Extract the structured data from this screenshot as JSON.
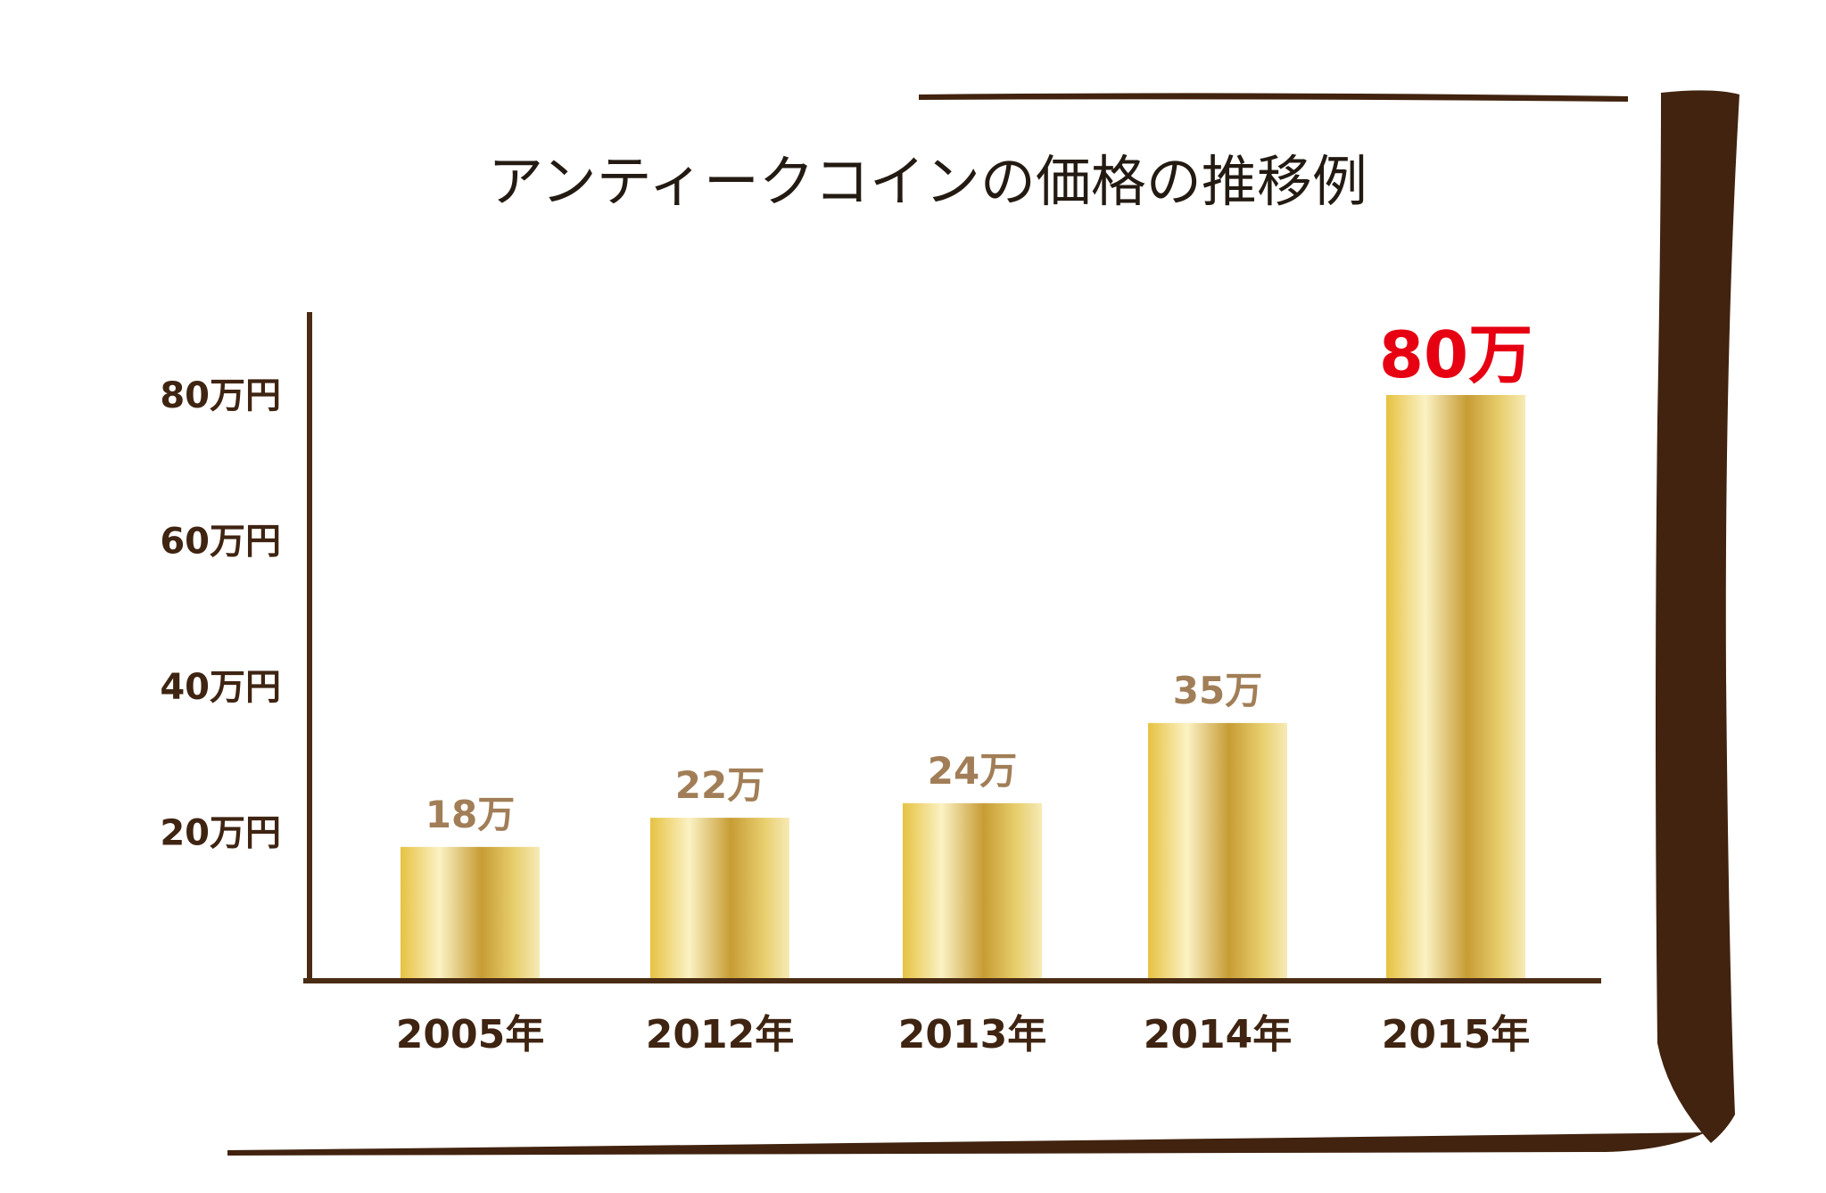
{
  "chart_data": {
    "type": "bar",
    "title": "アンティークコインの価格の推移例",
    "categories": [
      "2005年",
      "2012年",
      "2013年",
      "2014年",
      "2015年"
    ],
    "values": [
      18,
      22,
      24,
      35,
      80
    ],
    "data_labels": [
      "18万",
      "22万",
      "24万",
      "35万",
      "80万"
    ],
    "highlight_index": 4,
    "yticks": [
      20,
      40,
      60,
      80
    ],
    "ytick_labels": [
      "20万円",
      "40万円",
      "60万円",
      "80万円"
    ],
    "ylim": [
      0,
      88
    ],
    "xlabel": "",
    "ylabel": "",
    "grid": false,
    "legend": "none"
  },
  "colors": {
    "frame": "#41230f",
    "axis": "#4a2c14",
    "text": "#3f2412",
    "data_label": "#a17e57",
    "highlight_label": "#e60012",
    "bar_gradient": [
      "#e6c242",
      "#fbf2c4",
      "#c79c34",
      "#e8cf6e",
      "#f6eab6"
    ]
  }
}
